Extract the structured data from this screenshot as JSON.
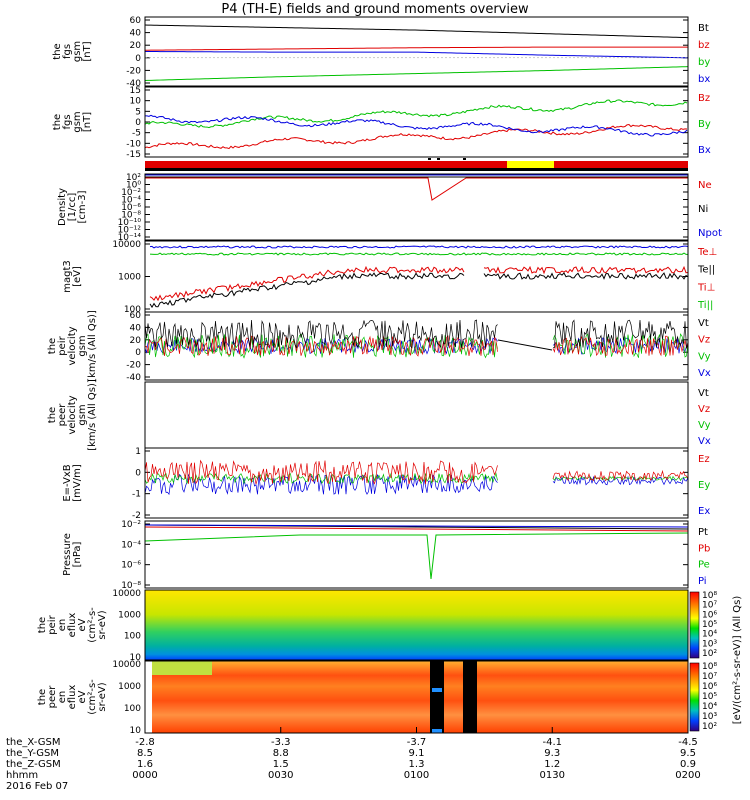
{
  "title": "P4 (TH-E) fields and ground moments overview",
  "colors": {
    "black": "#000000",
    "red": "#e00000",
    "green": "#00c000",
    "blue": "#0000e0",
    "yellow": "#ffff00"
  },
  "panels": [
    {
      "ylabel": [
        "the",
        "fgs",
        "gsm",
        "[nT]"
      ],
      "ticks": [
        "60",
        "40",
        "20",
        "0",
        "-20",
        "-40"
      ],
      "ylim": [
        -40,
        60
      ],
      "legend": [
        {
          "t": "Bt",
          "c": "black"
        },
        {
          "t": "bz",
          "c": "red"
        },
        {
          "t": "by",
          "c": "green"
        },
        {
          "t": "bx",
          "c": "blue"
        }
      ]
    },
    {
      "ylabel": [
        "the",
        "fgs",
        "gsm",
        "[nT]"
      ],
      "ticks": [
        "15",
        "10",
        "5",
        "0",
        "-5",
        "-10",
        "-15"
      ],
      "ylim": [
        -15,
        15
      ],
      "legend": [
        {
          "t": "Bz",
          "c": "red"
        },
        {
          "t": "By",
          "c": "green"
        },
        {
          "t": "Bx",
          "c": "blue"
        }
      ]
    },
    {
      "ylabel": [
        "Density",
        "[1/cc]",
        "[cm-3]"
      ],
      "ticks": [
        "10²",
        "10⁰",
        "10⁻²",
        "10⁻⁴",
        "10⁻⁶",
        "10⁻⁸",
        "10⁻¹⁰",
        "10⁻¹²",
        "10⁻¹⁴"
      ],
      "log": true,
      "legend": [
        {
          "t": "Ne",
          "c": "red"
        },
        {
          "t": "Ni",
          "c": "black"
        },
        {
          "t": "Npot",
          "c": "blue"
        }
      ]
    },
    {
      "ylabel": [
        "magt3",
        "[eV]"
      ],
      "ticks": [
        "10000",
        "1000",
        "100"
      ],
      "log": true,
      "legend": [
        {
          "t": "Te⊥",
          "c": "red"
        },
        {
          "t": "Te||",
          "c": "black"
        },
        {
          "t": "Ti⊥",
          "c": "red"
        },
        {
          "t": "Ti||",
          "c": "green"
        }
      ]
    },
    {
      "ylabel": [
        "the",
        "peir",
        "velocity",
        "gsm",
        "[km/s (All Qs)]"
      ],
      "ticks": [
        "60",
        "40",
        "20",
        "0",
        "-20",
        "-40"
      ],
      "ylim": [
        -40,
        60
      ],
      "legend": [
        {
          "t": "Vt",
          "c": "black"
        },
        {
          "t": "Vz",
          "c": "red"
        },
        {
          "t": "Vy",
          "c": "green"
        },
        {
          "t": "Vx",
          "c": "blue"
        }
      ]
    },
    {
      "ylabel": [
        "the",
        "peer",
        "velocity",
        "gsm",
        "[km/s (All Qs)]"
      ],
      "ticks": [],
      "legend": [
        {
          "t": "Vt",
          "c": "black"
        },
        {
          "t": "Vz",
          "c": "red"
        },
        {
          "t": "Vy",
          "c": "green"
        },
        {
          "t": "Vx",
          "c": "blue"
        }
      ]
    },
    {
      "ylabel": [
        "E=-VxB",
        "[mV/m]"
      ],
      "ticks": [
        "1",
        "0",
        "-1",
        "-2"
      ],
      "ylim": [
        -2,
        1.5
      ],
      "legend": [
        {
          "t": "Ez",
          "c": "red"
        },
        {
          "t": "Ey",
          "c": "green"
        },
        {
          "t": "Ex",
          "c": "blue"
        }
      ]
    },
    {
      "ylabel": [
        "Pressure",
        "[nPa]"
      ],
      "ticks": [
        "10⁻²",
        "10⁻⁴",
        "10⁻⁶",
        "10⁻⁸"
      ],
      "log": true,
      "legend": [
        {
          "t": "Pt",
          "c": "black"
        },
        {
          "t": "Pb",
          "c": "red"
        },
        {
          "t": "Pe",
          "c": "green"
        },
        {
          "t": "Pi",
          "c": "blue"
        }
      ]
    },
    {
      "ylabel": [
        "the",
        "peir",
        "en",
        "eflux",
        "eV",
        "(cm²-s-",
        "sr-eV)"
      ],
      "ticks": [
        "10000",
        "1000",
        "100",
        "10"
      ],
      "log": true,
      "legend": []
    },
    {
      "ylabel": [
        "the",
        "peer",
        "en",
        "eflux",
        "eV",
        "(cm²-s-",
        "sr-eV)"
      ],
      "ticks": [
        "10000",
        "1000",
        "100",
        "10"
      ],
      "log": true,
      "legend": []
    }
  ],
  "colorbar": {
    "ticks": [
      "10⁸",
      "10⁷",
      "10⁶",
      "10⁵",
      "10⁴",
      "10³",
      "10²"
    ],
    "label": "[eV/(cm²-s-sr-eV)] (All Qs)"
  },
  "footer": {
    "row_labels": [
      "the_X-GSM",
      "the_Y-GSM",
      "the_Z-GSM",
      "hhmm",
      "2016 Feb 07"
    ],
    "columns": [
      {
        "vals": [
          "-2.8",
          "8.5",
          "1.6",
          "0000"
        ]
      },
      {
        "vals": [
          "-3.3",
          "8.8",
          "1.5",
          "0030"
        ]
      },
      {
        "vals": [
          "-3.7",
          "9.1",
          "1.3",
          "0100"
        ]
      },
      {
        "vals": [
          "-4.1",
          "9.3",
          "1.2",
          "0130"
        ]
      },
      {
        "vals": [
          "-4.5",
          "9.5",
          "0.9",
          "0200"
        ]
      }
    ]
  },
  "chart_data": {
    "type": "line",
    "title": "P4 (TH-E) fields and ground moments overview",
    "x_time": [
      "0000",
      "0030",
      "0100",
      "0130",
      "0200"
    ],
    "series": [
      {
        "name": "Bt",
        "values": [
          52,
          48,
          44,
          38,
          32
        ]
      },
      {
        "name": "bz",
        "values": [
          12,
          14,
          16,
          17,
          17
        ]
      },
      {
        "name": "by",
        "values": [
          -36,
          -30,
          -25,
          -20,
          -14
        ]
      },
      {
        "name": "bx",
        "values": [
          10,
          9,
          9,
          4,
          0
        ]
      }
    ]
  }
}
